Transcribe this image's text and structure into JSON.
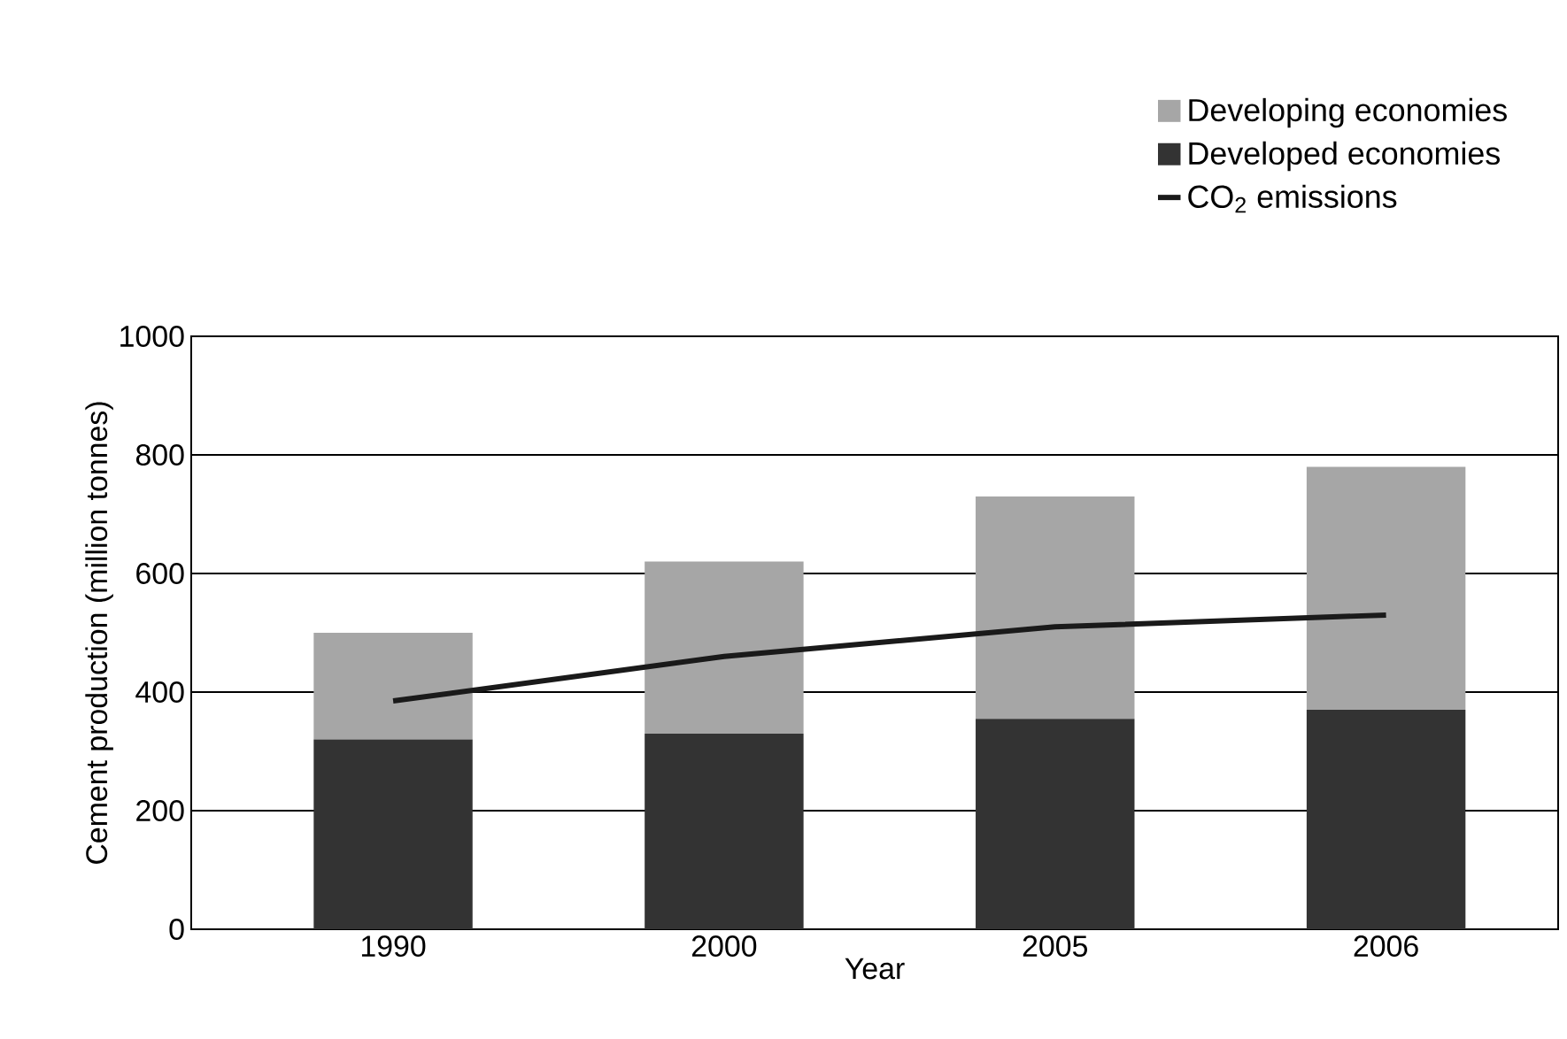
{
  "chart_data": {
    "type": "bar",
    "stacked": true,
    "xlabel": "Year",
    "ylabel": "Cement production (million tonnes)",
    "categories": [
      "1990",
      "2000",
      "2005",
      "2006"
    ],
    "series": [
      {
        "name": "Developed economies",
        "color": "#333333",
        "values": [
          320,
          330,
          355,
          370
        ]
      },
      {
        "name": "Developing economies",
        "color": "#a6a6a6",
        "values": [
          180,
          290,
          375,
          410
        ]
      },
      {
        "name": "CO$_{2}$ emissions",
        "type": "line",
        "color": "#1a1a1a",
        "values": [
          385,
          460,
          510,
          530
        ]
      }
    ],
    "ylim": [
      0,
      1000
    ],
    "yticks": [
      0,
      200,
      400,
      600,
      800,
      1000
    ],
    "grid": "y",
    "legend": "top right",
    "marker": "none",
    "line_style": "solid"
  }
}
